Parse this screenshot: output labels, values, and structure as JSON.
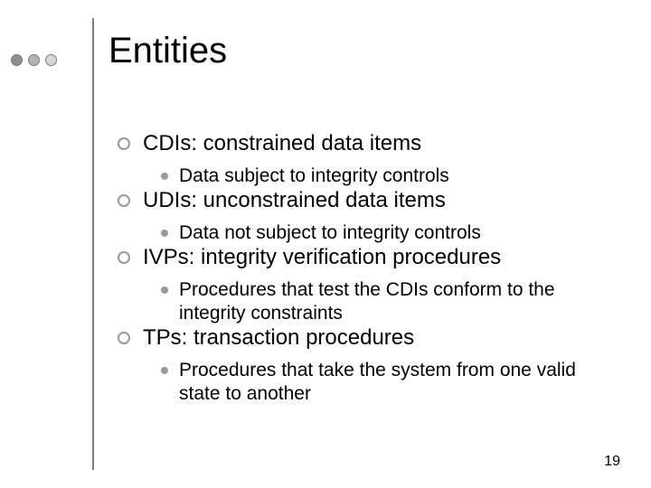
{
  "title": "Entities",
  "page_number": "19",
  "decor": {
    "dot_colors": [
      "#8e8e8e",
      "#b4b4b4",
      "#d6d6d6"
    ],
    "dot_border": "#7a7a7a",
    "rule_color": "#808080"
  },
  "bullets": [
    {
      "text": "CDIs: constrained data items",
      "sub": [
        "Data subject to integrity controls"
      ]
    },
    {
      "text": "UDIs: unconstrained data items",
      "sub": [
        "Data not subject to integrity controls"
      ]
    },
    {
      "text": "IVPs: integrity verification procedures",
      "sub": [
        "Procedures that test the CDIs conform to the integrity constraints"
      ]
    },
    {
      "text": "TPs: transaction procedures",
      "sub": [
        "Procedures that take the system from one valid state to another"
      ]
    }
  ],
  "typography": {
    "title_fontsize": 40,
    "l1_fontsize": 24,
    "l2_fontsize": 21,
    "pagenum_fontsize": 16,
    "font_family": "Arial"
  },
  "colors": {
    "background": "#ffffff",
    "text": "#000000",
    "l1_bullet_border": "#999999",
    "l2_bullet_fill": "#999999"
  }
}
